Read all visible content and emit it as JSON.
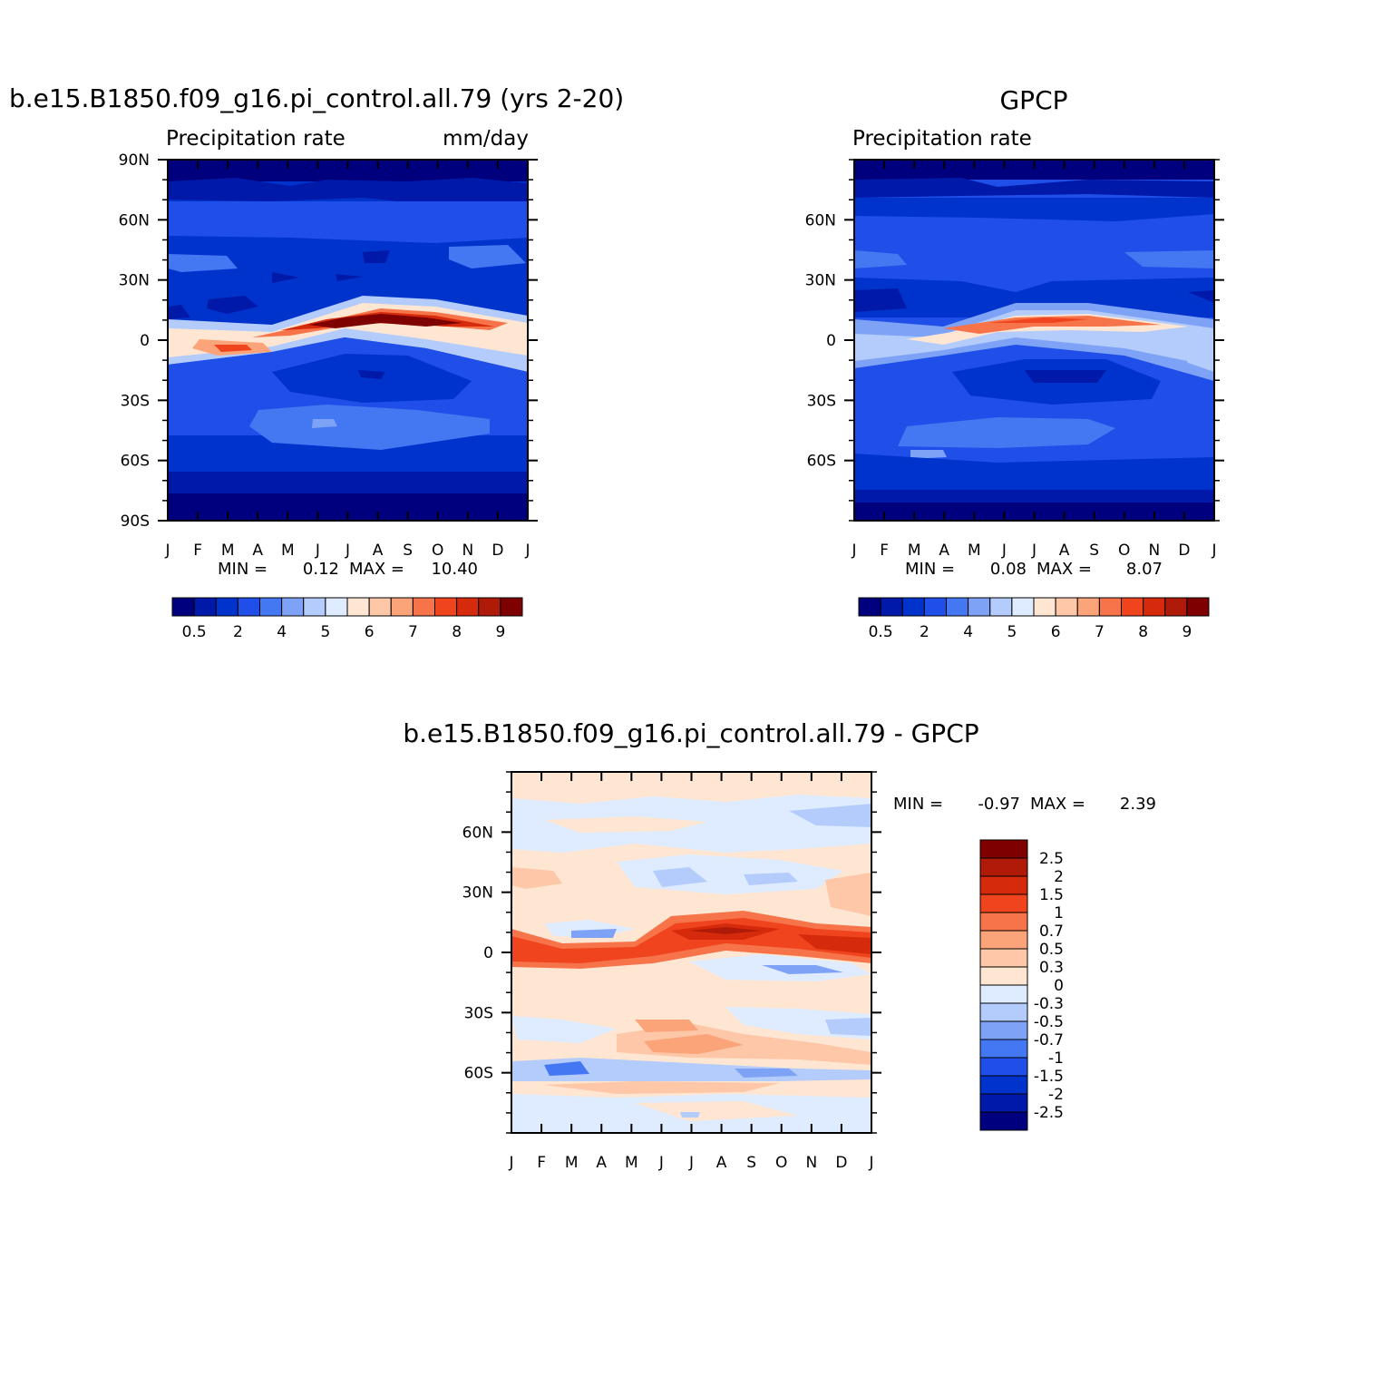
{
  "colors": {
    "precip_levels": [
      "#00007f",
      "#0019a8",
      "#0033cc",
      "#1f4fe8",
      "#4477f2",
      "#7ea3f6",
      "#b3ccfb",
      "#dfebfe",
      "#fee6d2",
      "#fdc7a8",
      "#fba47a",
      "#f7744a",
      "#f0441e",
      "#d62a0c",
      "#b01a08",
      "#7f0000"
    ],
    "diff_levels": [
      "#00007f",
      "#0019a8",
      "#0033cc",
      "#1f4fe8",
      "#4477f2",
      "#7ea3f6",
      "#b3ccfb",
      "#dfebfe",
      "#fee6d2",
      "#fdc7a8",
      "#fba47a",
      "#f7744a",
      "#f0441e",
      "#d62a0c",
      "#b01a08",
      "#7f0000"
    ]
  },
  "months": [
    "J",
    "F",
    "M",
    "A",
    "M",
    "J",
    "J",
    "A",
    "S",
    "O",
    "N",
    "D",
    "J"
  ],
  "chart_data": [
    {
      "type": "heatmap",
      "title": "b.e15.B1850.f09_g16.pi_control.all.79 (yrs 2-20)",
      "left_string": "Precipitation rate",
      "right_string": "mm/day",
      "x_tick_labels": [
        "J",
        "F",
        "M",
        "A",
        "M",
        "J",
        "J",
        "A",
        "S",
        "O",
        "N",
        "D",
        "J"
      ],
      "y_ticks": [
        90,
        60,
        30,
        0,
        -30,
        -60,
        -90
      ],
      "y_tick_labels": [
        "90N",
        "60N",
        "30N",
        "0",
        "30S",
        "60S",
        "90S"
      ],
      "ylim": [
        -90,
        90
      ],
      "min_label": "MIN =",
      "min_value": "0.12",
      "max_label": "MAX =",
      "max_value": "10.40",
      "colorbar_labels": [
        "0.5",
        "2",
        "4",
        "5",
        "6",
        "7",
        "8",
        "9"
      ],
      "itcz_peak_value": 10.4,
      "itcz_peak_month": "Aug",
      "itcz_peak_lat": 10
    },
    {
      "type": "heatmap",
      "title": "GPCP",
      "left_string": "Precipitation rate",
      "x_tick_labels": [
        "J",
        "F",
        "M",
        "A",
        "M",
        "J",
        "J",
        "A",
        "S",
        "O",
        "N",
        "D",
        "J"
      ],
      "y_ticks": [
        60,
        30,
        0,
        -30,
        -60
      ],
      "y_tick_labels": [
        "60N",
        "30N",
        "0",
        "30S",
        "60S"
      ],
      "ylim": [
        -90,
        90
      ],
      "min_label": "MIN =",
      "min_value": "0.08",
      "max_label": "MAX =",
      "max_value": "8.07",
      "colorbar_labels": [
        "0.5",
        "2",
        "4",
        "5",
        "6",
        "7",
        "8",
        "9"
      ],
      "itcz_peak_value": 8.07,
      "itcz_peak_month": "Aug",
      "itcz_peak_lat": 8
    },
    {
      "type": "heatmap",
      "title": "b.e15.B1850.f09_g16.pi_control.all.79 - GPCP",
      "x_tick_labels": [
        "J",
        "F",
        "M",
        "A",
        "M",
        "J",
        "J",
        "A",
        "S",
        "O",
        "N",
        "D",
        "J"
      ],
      "y_ticks": [
        60,
        30,
        0,
        -30,
        -60
      ],
      "y_tick_labels": [
        "60N",
        "30N",
        "0",
        "30S",
        "60S"
      ],
      "ylim": [
        -90,
        90
      ],
      "min_label": "MIN =",
      "min_value": "-0.97",
      "max_label": "MAX =",
      "max_value": "2.39",
      "colorbar_labels": [
        "2.5",
        "2",
        "1.5",
        "1",
        "0.7",
        "0.5",
        "0.3",
        "0",
        "-0.3",
        "-0.5",
        "-0.7",
        "-1",
        "-1.5",
        "-2",
        "-2.5"
      ],
      "colorbar_orientation": "vertical"
    }
  ]
}
